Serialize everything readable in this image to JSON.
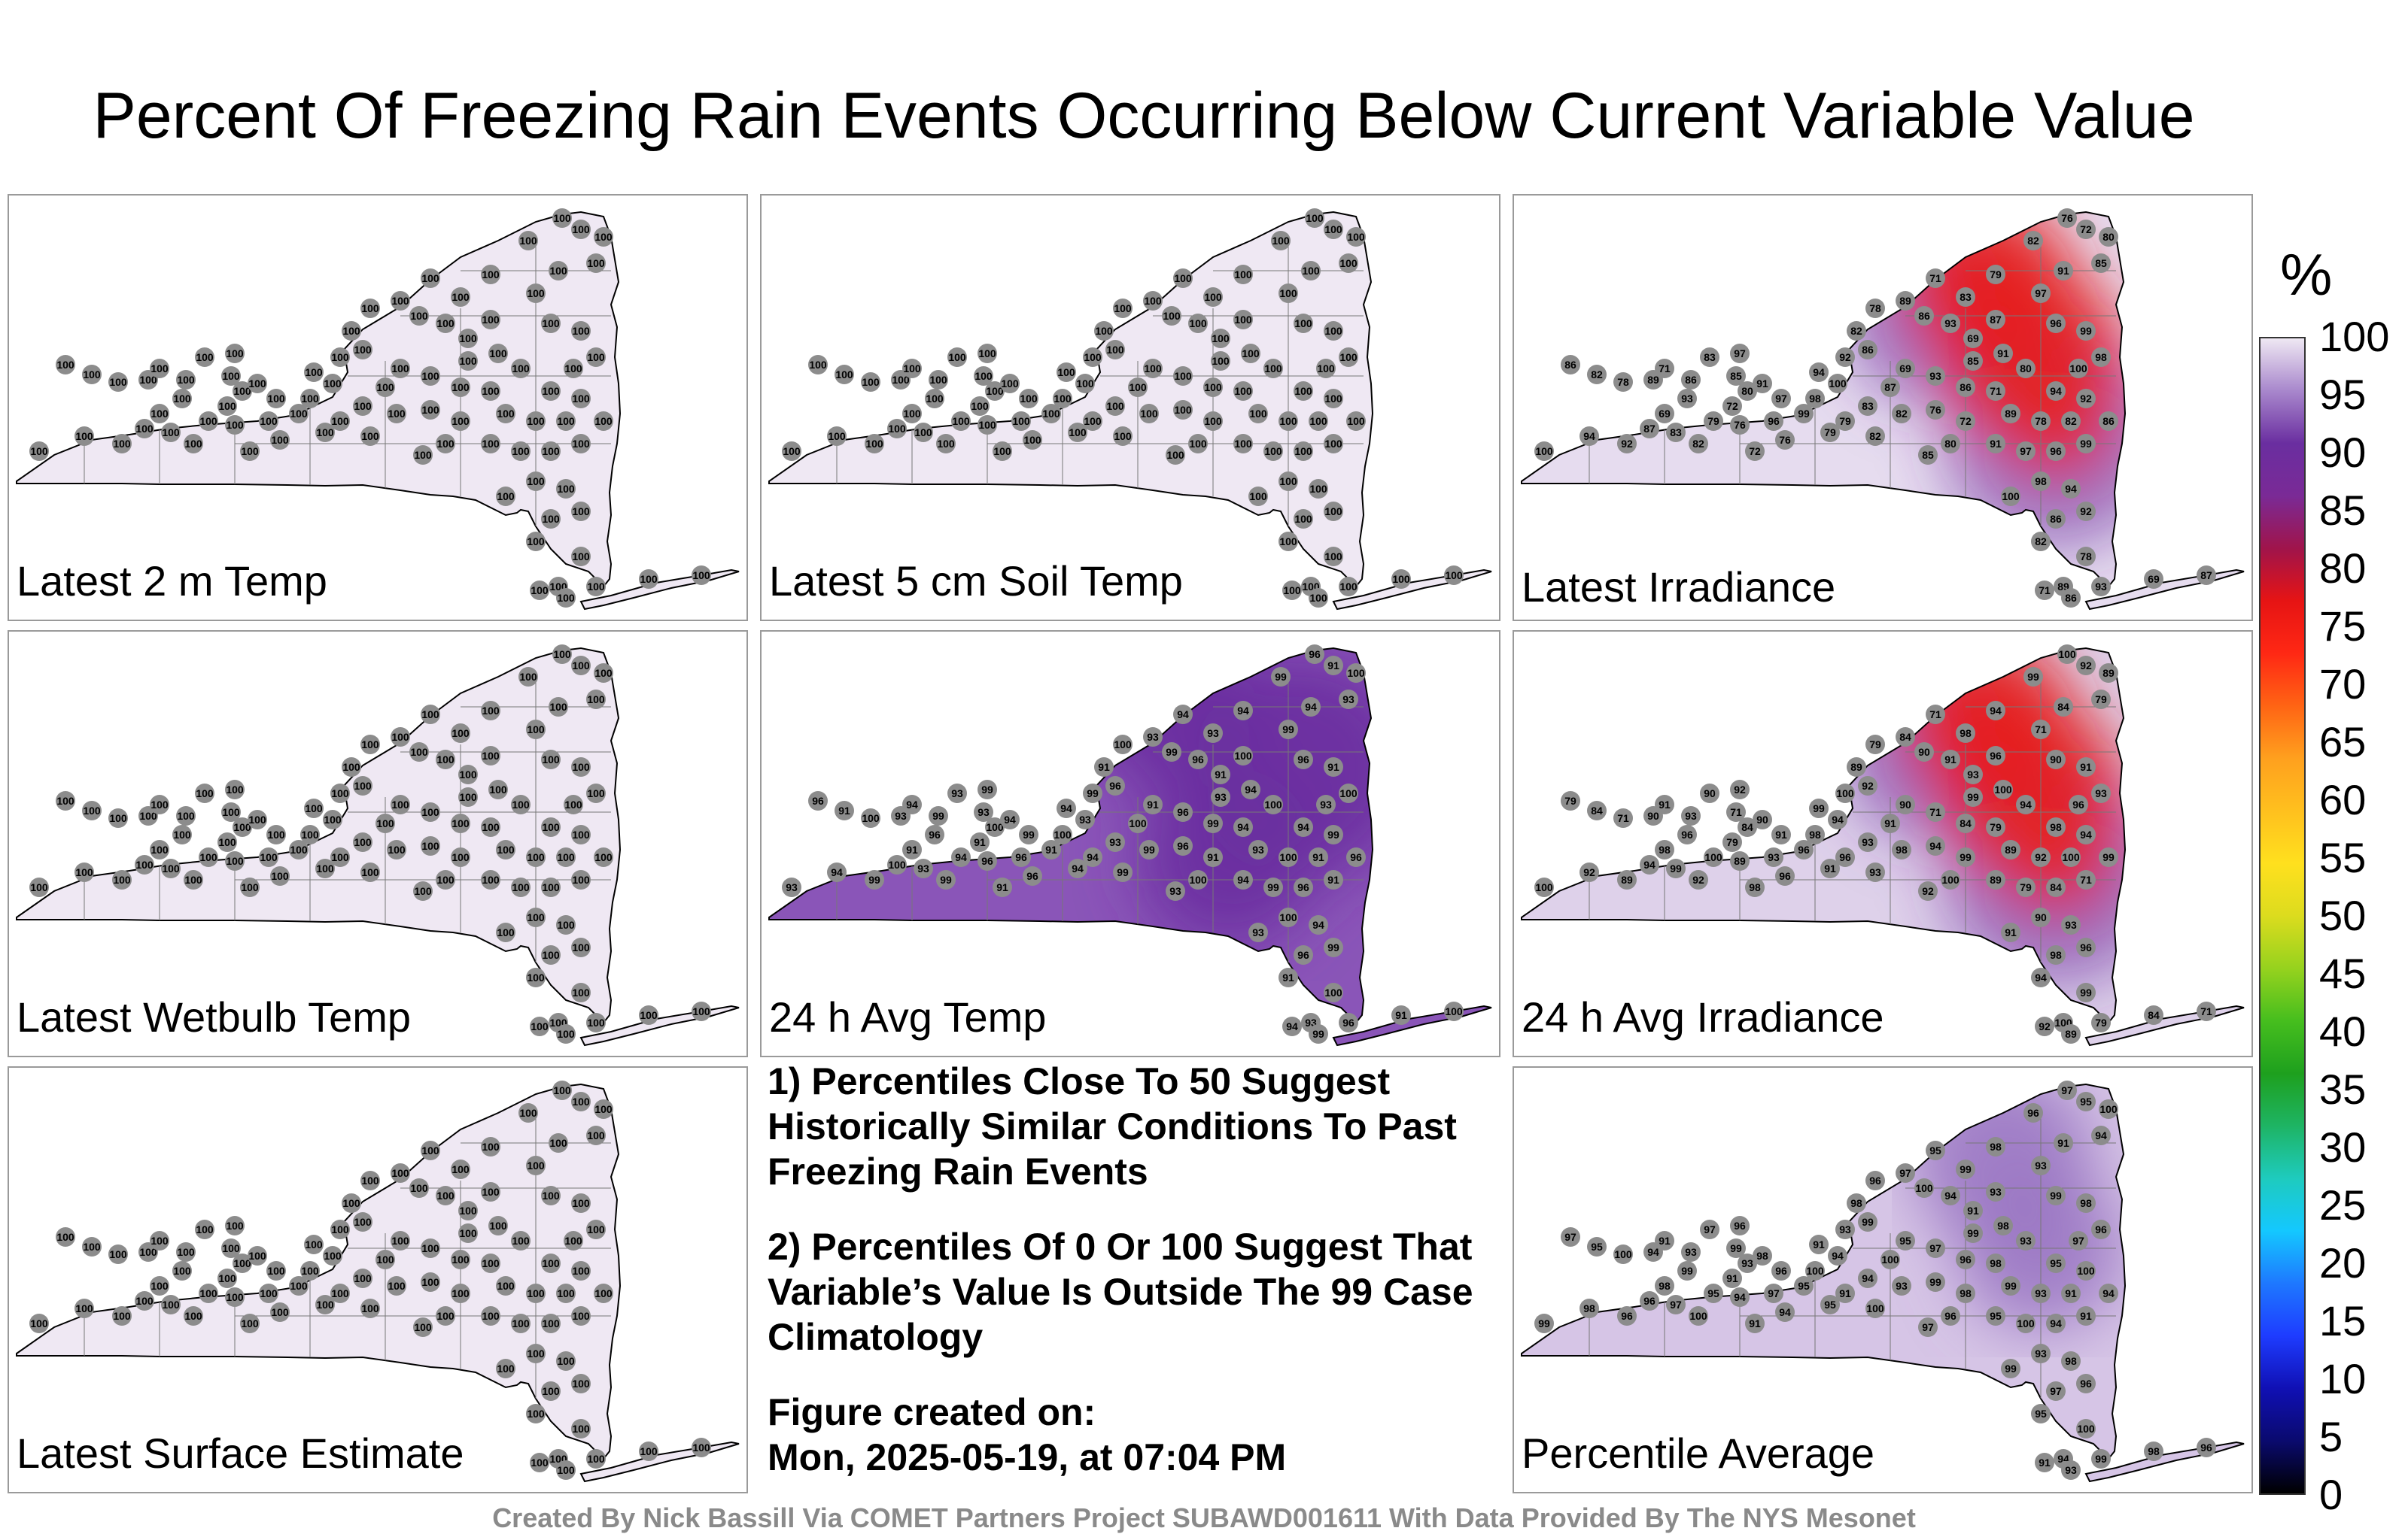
{
  "title": "Percent Of Freezing Rain Events Occurring Below Current Variable Value",
  "panels": [
    {
      "label": "Latest 2 m Temp",
      "fill": "#efe8f3",
      "hot": "none",
      "values": [
        "100"
      ]
    },
    {
      "label": "Latest 5 cm Soil Temp",
      "fill": "#efe8f3",
      "hot": "none",
      "values": [
        "100"
      ]
    },
    {
      "label": "Latest Irradiance",
      "fill": "#e6dcef",
      "hot": "red",
      "values": [
        "100",
        "94",
        "92",
        "86",
        "82",
        "78",
        "89",
        "71",
        "86",
        "93",
        "69",
        "87",
        "83",
        "79",
        "82",
        "76",
        "72",
        "80",
        "85",
        "91",
        "97",
        "96",
        "99",
        "98"
      ]
    },
    {
      "label": "Latest Wetbulb Temp",
      "fill": "#efe8f3",
      "hot": "none",
      "values": [
        "100"
      ]
    },
    {
      "label": "24 h Avg Temp",
      "fill": "#8a55b8",
      "hot": "purple",
      "values": [
        "93",
        "94",
        "99",
        "96",
        "91",
        "100"
      ]
    },
    {
      "label": "24 h Avg Irradiance",
      "fill": "#ded1ea",
      "hot": "red",
      "values": [
        "100",
        "92",
        "89",
        "79",
        "84",
        "71",
        "90",
        "91",
        "93",
        "96",
        "98",
        "94",
        "99"
      ]
    },
    {
      "label": "Latest Surface Estimate",
      "fill": "#efe8f3",
      "hot": "none",
      "values": [
        "100"
      ]
    },
    {
      "label": "Percentile Average",
      "fill": "#d6c5e6",
      "hot": "light",
      "values": [
        "99",
        "98",
        "96",
        "97",
        "95",
        "100",
        "94",
        "91",
        "93"
      ]
    }
  ],
  "notes": [
    "1) Percentiles Close To 50 Suggest Historically Similar Conditions To Past Freezing Rain Events",
    "2) Percentiles Of 0 Or 100 Suggest That Variable’s Value Is Outside The 99 Case Climatology",
    "Figure created on:",
    "Mon, 2025-05-19, at 07:04 PM"
  ],
  "colorbar": {
    "unit": "%",
    "ticks": [
      "100",
      "95",
      "90",
      "85",
      "80",
      "75",
      "70",
      "65",
      "60",
      "55",
      "50",
      "45",
      "40",
      "35",
      "30",
      "25",
      "20",
      "15",
      "10",
      "5",
      "0"
    ]
  },
  "footer": "Created By Nick Bassill Via COMET Partners Project SUBAWD001611 With Data Provided By The NYS Mesonet"
}
